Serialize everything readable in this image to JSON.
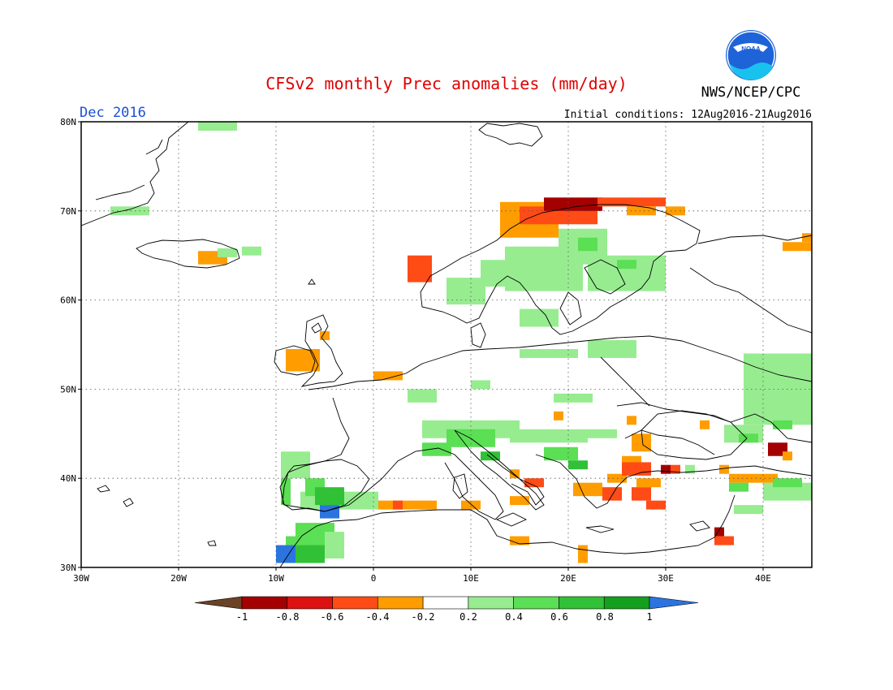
{
  "title": "CFSv2 monthly Prec anomalies (mm/day)",
  "valid_month": "Dec 2016",
  "agency": "NWS/NCEP/CPC",
  "logo_text": "NOAA",
  "init_conditions": "Initial conditions: 12Aug2016-21Aug2016",
  "colors": {
    "title": "#e00000",
    "month": "#1a4fd6",
    "logo_blue": "#1e63d8",
    "logo_cyan": "#19c2ee"
  },
  "map": {
    "lon_range": [
      -30,
      45
    ],
    "lat_range": [
      30,
      80
    ],
    "lon_labels": [
      "30W",
      "20W",
      "10W",
      "0",
      "10E",
      "20E",
      "30E",
      "40E"
    ],
    "lat_labels": [
      "30N",
      "40N",
      "50N",
      "60N",
      "70N",
      "80N"
    ],
    "gridlines": "dotted every 10 degrees"
  },
  "legend": {
    "tick_labels": [
      "-1",
      "-0.8",
      "-0.6",
      "-0.4",
      "-0.2",
      "0.2",
      "0.4",
      "0.6",
      "0.8",
      "1"
    ],
    "low_color": "#6b4226",
    "high_color": "#2b74e0",
    "bin_colors": [
      "#a50000",
      "#dd1111",
      "#ff4b16",
      "#ff9d00",
      "#ffffff",
      "#97ec90",
      "#5bdf54",
      "#30c136",
      "#14a01e"
    ]
  },
  "anomalies": [
    {
      "lon": -18,
      "lat": 79,
      "w": 4,
      "h": 3,
      "bin": "0.2-0.4"
    },
    {
      "lon": -27,
      "lat": 69.5,
      "w": 4,
      "h": 1,
      "bin": "0.2-0.4"
    },
    {
      "lon": -18,
      "lat": 64,
      "w": 3,
      "h": 1.5,
      "bin": "-0.4--0.2"
    },
    {
      "lon": -16,
      "lat": 64.8,
      "w": 2,
      "h": 1,
      "bin": "0.2-0.4"
    },
    {
      "lon": -13.5,
      "lat": 65,
      "w": 2,
      "h": 1,
      "bin": "0.2-0.4"
    },
    {
      "lon": -9,
      "lat": 52,
      "w": 3.5,
      "h": 2.5,
      "bin": "-0.4--0.2"
    },
    {
      "lon": -5.5,
      "lat": 55.5,
      "w": 1,
      "h": 1,
      "bin": "-0.4--0.2"
    },
    {
      "lon": 0,
      "lat": 51,
      "w": 3,
      "h": 1,
      "bin": "-0.4--0.2"
    },
    {
      "lon": 3.5,
      "lat": 62,
      "w": 2.5,
      "h": 3,
      "bin": "-0.6--0.4"
    },
    {
      "lon": 7.5,
      "lat": 59.5,
      "w": 4,
      "h": 3,
      "bin": "0.2-0.4"
    },
    {
      "lon": 11,
      "lat": 61.5,
      "w": 4,
      "h": 3,
      "bin": "0.2-0.4"
    },
    {
      "lon": 13,
      "lat": 67,
      "w": 6,
      "h": 4,
      "bin": "-0.4--0.2"
    },
    {
      "lon": 15,
      "lat": 68.5,
      "w": 8,
      "h": 2,
      "bin": "-0.6--0.4"
    },
    {
      "lon": 17.5,
      "lat": 70,
      "w": 6,
      "h": 1.5,
      "bin": "-0.8--0.6"
    },
    {
      "lon": 23,
      "lat": 70.5,
      "w": 7,
      "h": 1,
      "bin": "-0.6--0.4"
    },
    {
      "lon": 26,
      "lat": 69.5,
      "w": 3,
      "h": 1,
      "bin": "-0.4--0.2"
    },
    {
      "lon": 30,
      "lat": 69.5,
      "w": 2,
      "h": 1,
      "bin": "-0.4--0.2"
    },
    {
      "lon": 13.5,
      "lat": 61,
      "w": 8,
      "h": 5,
      "bin": "0.2-0.4"
    },
    {
      "lon": 19,
      "lat": 64,
      "w": 5,
      "h": 4,
      "bin": "0.2-0.4"
    },
    {
      "lon": 21,
      "lat": 65.5,
      "w": 2,
      "h": 1.5,
      "bin": "0.4-0.6"
    },
    {
      "lon": 22,
      "lat": 61,
      "w": 8,
      "h": 4,
      "bin": "0.2-0.4"
    },
    {
      "lon": 25,
      "lat": 63.5,
      "w": 2,
      "h": 1,
      "bin": "0.4-0.6"
    },
    {
      "lon": 15,
      "lat": 57,
      "w": 4,
      "h": 2,
      "bin": "0.2-0.4"
    },
    {
      "lon": 15,
      "lat": 53.5,
      "w": 6,
      "h": 1,
      "bin": "0.2-0.4"
    },
    {
      "lon": 22,
      "lat": 53.5,
      "w": 5,
      "h": 2,
      "bin": "0.2-0.4"
    },
    {
      "lon": 3.5,
      "lat": 48.5,
      "w": 3,
      "h": 1.5,
      "bin": "0.2-0.4"
    },
    {
      "lon": 10,
      "lat": 50,
      "w": 2,
      "h": 1,
      "bin": "0.2-0.4"
    },
    {
      "lon": 18.5,
      "lat": 48.5,
      "w": 4,
      "h": 1,
      "bin": "0.2-0.4"
    },
    {
      "lon": 5,
      "lat": 44.5,
      "w": 10,
      "h": 2,
      "bin": "0.2-0.4"
    },
    {
      "lon": 7.5,
      "lat": 43.5,
      "w": 5,
      "h": 2,
      "bin": "0.4-0.6"
    },
    {
      "lon": 5,
      "lat": 42.5,
      "w": 3,
      "h": 1.5,
      "bin": "0.4-0.6"
    },
    {
      "lon": 11,
      "lat": 42,
      "w": 2,
      "h": 1,
      "bin": "0.6-0.8"
    },
    {
      "lon": 14,
      "lat": 44,
      "w": 8,
      "h": 1.5,
      "bin": "0.2-0.4"
    },
    {
      "lon": 17.5,
      "lat": 42,
      "w": 3.5,
      "h": 1.5,
      "bin": "0.4-0.6"
    },
    {
      "lon": 20,
      "lat": 41,
      "w": 2,
      "h": 1,
      "bin": "0.6-0.8"
    },
    {
      "lon": 22,
      "lat": 44.5,
      "w": 3,
      "h": 1,
      "bin": "0.2-0.4"
    },
    {
      "lon": 18.5,
      "lat": 46.5,
      "w": 1,
      "h": 1,
      "bin": "-0.4--0.2"
    },
    {
      "lon": 14,
      "lat": 40,
      "w": 1,
      "h": 1,
      "bin": "-0.4--0.2"
    },
    {
      "lon": 15.5,
      "lat": 39,
      "w": 2,
      "h": 1,
      "bin": "-0.6--0.4"
    },
    {
      "lon": 14,
      "lat": 37,
      "w": 2,
      "h": 1,
      "bin": "-0.4--0.2"
    },
    {
      "lon": 20.5,
      "lat": 38,
      "w": 3,
      "h": 1.5,
      "bin": "-0.4--0.2"
    },
    {
      "lon": 23.5,
      "lat": 37.5,
      "w": 2,
      "h": 1.5,
      "bin": "-0.6--0.4"
    },
    {
      "lon": 24,
      "lat": 39.5,
      "w": 2,
      "h": 1,
      "bin": "-0.4--0.2"
    },
    {
      "lon": 26.5,
      "lat": 43,
      "w": 2,
      "h": 2,
      "bin": "-0.4--0.2"
    },
    {
      "lon": 25.5,
      "lat": 41.5,
      "w": 2,
      "h": 1,
      "bin": "-0.4--0.2"
    },
    {
      "lon": 25.5,
      "lat": 40.3,
      "w": 3,
      "h": 1.5,
      "bin": "-0.6--0.4"
    },
    {
      "lon": 27,
      "lat": 39,
      "w": 2.5,
      "h": 1,
      "bin": "-0.4--0.2"
    },
    {
      "lon": 29.5,
      "lat": 40.5,
      "w": 1,
      "h": 1,
      "bin": "-0.8--0.6"
    },
    {
      "lon": 30.5,
      "lat": 40.5,
      "w": 1,
      "h": 1,
      "bin": "-0.6--0.4"
    },
    {
      "lon": 26.5,
      "lat": 37.5,
      "w": 2,
      "h": 1.5,
      "bin": "-0.6--0.4"
    },
    {
      "lon": 28,
      "lat": 36.5,
      "w": 2,
      "h": 1,
      "bin": "-0.6--0.4"
    },
    {
      "lon": 26,
      "lat": 46,
      "w": 1,
      "h": 1,
      "bin": "-0.4--0.2"
    },
    {
      "lon": 33.5,
      "lat": 45.5,
      "w": 1,
      "h": 1,
      "bin": "-0.4--0.2"
    },
    {
      "lon": 35.5,
      "lat": 40.5,
      "w": 1,
      "h": 1,
      "bin": "-0.4--0.2"
    },
    {
      "lon": 36.5,
      "lat": 39.5,
      "w": 5,
      "h": 1,
      "bin": "-0.4--0.2"
    },
    {
      "lon": 40.5,
      "lat": 42.5,
      "w": 2,
      "h": 1.5,
      "bin": "-0.8--0.6"
    },
    {
      "lon": 42,
      "lat": 42,
      "w": 1,
      "h": 1,
      "bin": "-0.4--0.2"
    },
    {
      "lon": 44,
      "lat": 66.5,
      "w": 1,
      "h": 1,
      "bin": "-0.4--0.2"
    },
    {
      "lon": 42,
      "lat": 65.5,
      "w": 3,
      "h": 1,
      "bin": "-0.4--0.2"
    },
    {
      "lon": 35,
      "lat": 33.5,
      "w": 1,
      "h": 1,
      "bin": "-0.8--0.6"
    },
    {
      "lon": 35,
      "lat": 32.5,
      "w": 2,
      "h": 1,
      "bin": "-0.6--0.4"
    },
    {
      "lon": 21,
      "lat": 30.5,
      "w": 1,
      "h": 2,
      "bin": "-0.4--0.2"
    },
    {
      "lon": 14,
      "lat": 32.5,
      "w": 2,
      "h": 1,
      "bin": "-0.4--0.2"
    },
    {
      "lon": 0.5,
      "lat": 36.5,
      "w": 6,
      "h": 1,
      "bin": "-0.4--0.2"
    },
    {
      "lon": 2,
      "lat": 36.5,
      "w": 1,
      "h": 1,
      "bin": "-0.6--0.4"
    },
    {
      "lon": 9,
      "lat": 36.5,
      "w": 2,
      "h": 1,
      "bin": "-0.4--0.2"
    },
    {
      "lon": 38,
      "lat": 46,
      "w": 7,
      "h": 8,
      "bin": "0.2-0.4"
    },
    {
      "lon": 36,
      "lat": 44,
      "w": 4,
      "h": 2,
      "bin": "0.2-0.4"
    },
    {
      "lon": 37.5,
      "lat": 44,
      "w": 2,
      "h": 1,
      "bin": "0.4-0.6"
    },
    {
      "lon": 41,
      "lat": 45.5,
      "w": 2,
      "h": 1,
      "bin": "0.4-0.6"
    },
    {
      "lon": 40,
      "lat": 37.5,
      "w": 5,
      "h": 2,
      "bin": "0.2-0.4"
    },
    {
      "lon": 36.5,
      "lat": 38.5,
      "w": 2,
      "h": 1,
      "bin": "0.4-0.6"
    },
    {
      "lon": 41,
      "lat": 39,
      "w": 3,
      "h": 1,
      "bin": "0.4-0.6"
    },
    {
      "lon": 32,
      "lat": 40.5,
      "w": 1,
      "h": 1,
      "bin": "0.2-0.4"
    },
    {
      "lon": 37,
      "lat": 36,
      "w": 3,
      "h": 1,
      "bin": "0.2-0.4"
    },
    {
      "lon": -9.5,
      "lat": 40,
      "w": 3,
      "h": 3,
      "bin": "0.2-0.4"
    },
    {
      "lon": -9.5,
      "lat": 37,
      "w": 1,
      "h": 3,
      "bin": "0.4-0.6"
    },
    {
      "lon": -7.5,
      "lat": 36.5,
      "w": 8,
      "h": 2,
      "bin": "0.2-0.4"
    },
    {
      "lon": -7,
      "lat": 38,
      "w": 2,
      "h": 2,
      "bin": "0.4-0.6"
    },
    {
      "lon": -6,
      "lat": 37,
      "w": 3,
      "h": 2,
      "bin": "0.6-0.8"
    },
    {
      "lon": -5.5,
      "lat": 35.5,
      "w": 2,
      "h": 1.5,
      "bin": ">1"
    },
    {
      "lon": -8,
      "lat": 32,
      "w": 4,
      "h": 3,
      "bin": "0.4-0.6"
    },
    {
      "lon": -8,
      "lat": 30.5,
      "w": 3,
      "h": 2,
      "bin": "0.6-0.8"
    },
    {
      "lon": -5,
      "lat": 31,
      "w": 2,
      "h": 3,
      "bin": "0.2-0.4"
    },
    {
      "lon": -10,
      "lat": 30.5,
      "w": 2,
      "h": 2,
      "bin": ">1"
    },
    {
      "lon": -9,
      "lat": 32.5,
      "w": 2,
      "h": 1,
      "bin": "0.4-0.6"
    }
  ]
}
